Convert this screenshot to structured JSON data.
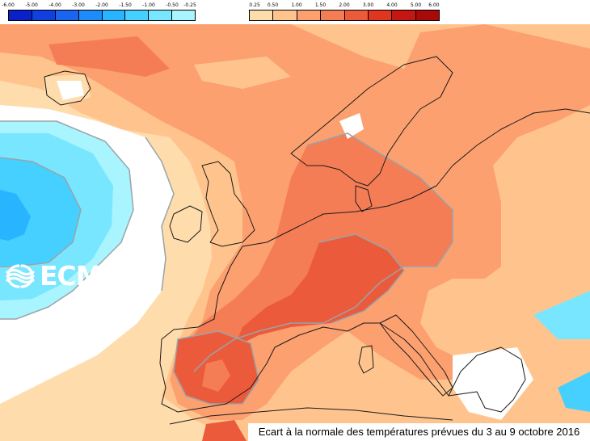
{
  "map": {
    "caption": "Ecart à la normale des températures prévues du 3 au 9 octobre 2016",
    "logo_text": "ECMWF",
    "logo_icon": "ecmwf-waves-icon",
    "background_color": "#ffffff",
    "coast_color": "#1a1a1a",
    "contour_color": "#9aa3a8"
  },
  "legend": {
    "cold": {
      "ticks": [
        "-6.00",
        "-5.00",
        "-4.00",
        "-3.00",
        "-2.00",
        "-1.50",
        "-1.00",
        "-0.50",
        "-0.25"
      ],
      "colors": [
        "#0a20c8",
        "#1040e0",
        "#1a64f0",
        "#1e8cf8",
        "#28b4ff",
        "#46d0ff",
        "#78e6ff",
        "#a8f4ff"
      ]
    },
    "warm": {
      "ticks": [
        "0.25",
        "0.50",
        "1.00",
        "1.50",
        "2.00",
        "3.00",
        "4.00",
        "5.00",
        "6.00"
      ],
      "colors": [
        "#ffdcac",
        "#ffc48e",
        "#fca070",
        "#f57d55",
        "#ec5a3c",
        "#e0361f",
        "#c61614",
        "#a80a0a"
      ]
    }
  }
}
